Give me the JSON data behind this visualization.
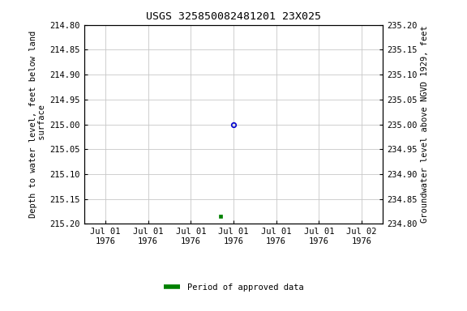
{
  "title": "USGS 325850082481201 23X025",
  "ylabel_left": "Depth to water level, feet below land\n surface",
  "ylabel_right": "Groundwater level above NGVD 1929, feet",
  "ylim_left_top": 214.8,
  "ylim_left_bottom": 215.2,
  "ylim_right_top": 235.2,
  "ylim_right_bottom": 234.8,
  "yticks_left": [
    214.8,
    214.85,
    214.9,
    214.95,
    215.0,
    215.05,
    215.1,
    215.15,
    215.2
  ],
  "yticks_right": [
    235.2,
    235.15,
    235.1,
    235.05,
    235.0,
    234.95,
    234.9,
    234.85,
    234.8
  ],
  "point_blue_x": 3,
  "point_blue_value": 215.0,
  "point_blue_color": "#0000cc",
  "point_green_x": 3,
  "point_green_value": 215.185,
  "point_green_color": "#008000",
  "legend_label": "Period of approved data",
  "legend_color": "#008000",
  "background_color": "#ffffff",
  "grid_color": "#c8c8c8",
  "title_fontsize": 9.5,
  "axis_label_fontsize": 7.5,
  "tick_fontsize": 7.5,
  "font_family": "monospace",
  "xtick_labels": [
    "Jul 01\n1976",
    "Jul 01\n1976",
    "Jul 01\n1976",
    "Jul 01\n1976",
    "Jul 01\n1976",
    "Jul 01\n1976",
    "Jul 02\n1976"
  ],
  "num_xticks": 7,
  "x_range": [
    0,
    6
  ]
}
